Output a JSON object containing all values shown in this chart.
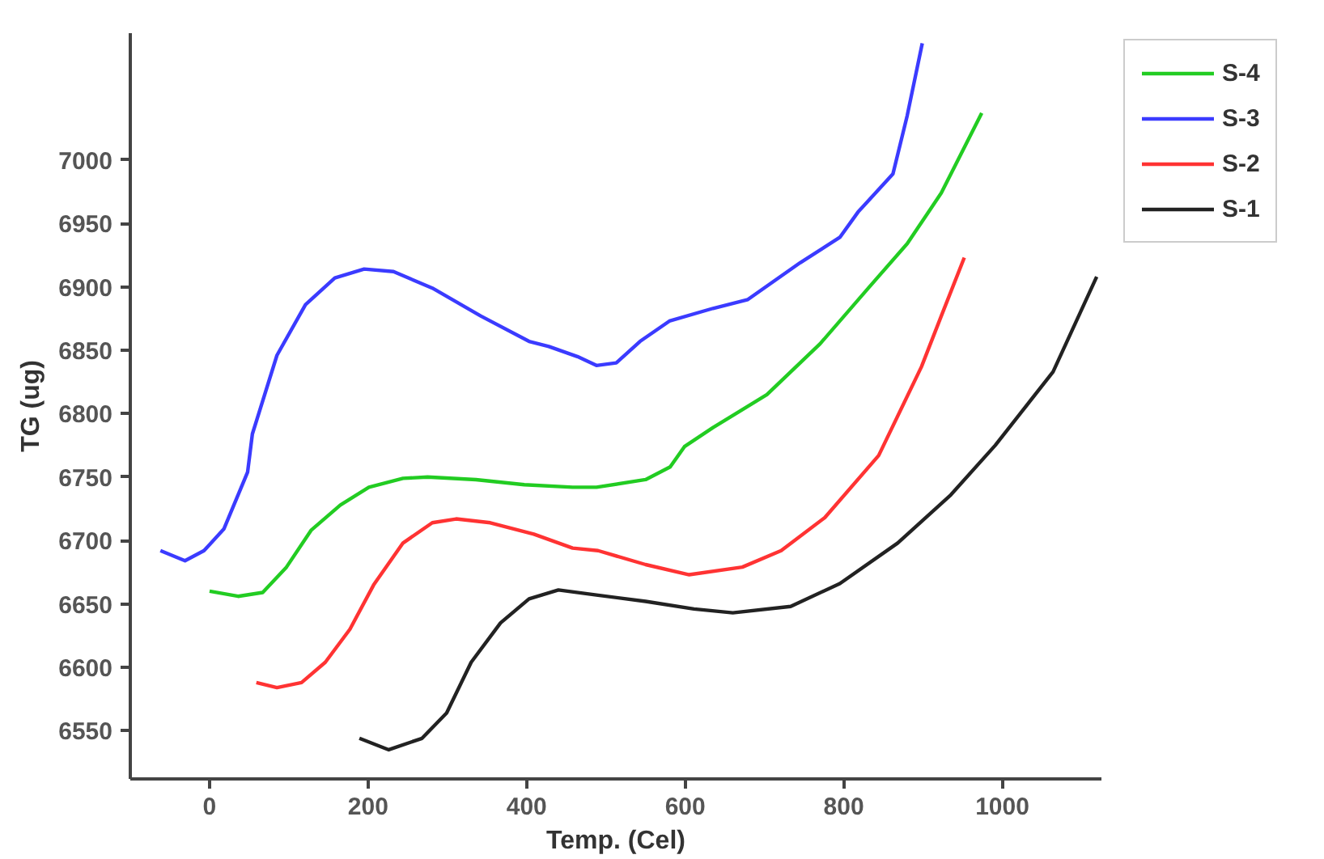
{
  "chart_data": {
    "type": "line",
    "xlabel": "Temp. (Cel)",
    "ylabel": "TG (ug)",
    "xlim": [
      -100,
      1125
    ],
    "ylim": [
      6512,
      7100
    ],
    "xticks": [
      0,
      200,
      400,
      600,
      800,
      1000
    ],
    "yticks": [
      6550,
      6600,
      6650,
      6700,
      6750,
      6800,
      6850,
      6900,
      6950,
      7000
    ],
    "grid": false,
    "legend": "top right",
    "marker": "none",
    "line_style": "solid",
    "series": [
      {
        "name": "S-4",
        "color": "#22cc22",
        "x": [
          0,
          36,
          67,
          97,
          128,
          165,
          201,
          244,
          275,
          336,
          397,
          458,
          488,
          550,
          581,
          599,
          635,
          703,
          770,
          831,
          880,
          923,
          974
        ],
        "values": [
          6660,
          6656,
          6659,
          6679,
          6708,
          6728,
          6742,
          6749,
          6750,
          6748,
          6744,
          6742,
          6742,
          6748,
          6758,
          6774,
          6789,
          6815,
          6855,
          6899,
          6934,
          6974,
          7037
        ]
      },
      {
        "name": "S-3",
        "color": "#3b3bff",
        "x": [
          -62,
          -31,
          -7,
          18,
          48,
          54,
          85,
          121,
          158,
          195,
          232,
          281,
          342,
          403,
          428,
          464,
          488,
          513,
          543,
          580,
          635,
          679,
          745,
          795,
          818,
          862,
          880,
          899
        ],
        "values": [
          6692,
          6684,
          6692,
          6709,
          6754,
          6784,
          6846,
          6886,
          6907,
          6914,
          6912,
          6899,
          6877,
          6857,
          6853,
          6845,
          6838,
          6840,
          6857,
          6873,
          6883,
          6890,
          6919,
          6939,
          6959,
          6989,
          7035,
          7092
        ]
      },
      {
        "name": "S-2",
        "color": "#ff3333",
        "x": [
          59,
          85,
          116,
          146,
          177,
          207,
          244,
          281,
          311,
          354,
          409,
          458,
          490,
          550,
          605,
          672,
          721,
          776,
          844,
          898,
          923,
          952
        ],
        "values": [
          6588,
          6584,
          6588,
          6604,
          6630,
          6665,
          6698,
          6714,
          6717,
          6714,
          6705,
          6694,
          6692,
          6681,
          6673,
          6679,
          6692,
          6718,
          6767,
          6837,
          6877,
          6923
        ]
      },
      {
        "name": "S-1",
        "color": "#222222",
        "x": [
          189,
          226,
          268,
          299,
          330,
          367,
          403,
          440,
          488,
          550,
          611,
          660,
          733,
          795,
          868,
          935,
          991,
          1064,
          1119
        ],
        "values": [
          6544,
          6535,
          6544,
          6564,
          6604,
          6635,
          6654,
          6661,
          6657,
          6652,
          6646,
          6643,
          6648,
          6666,
          6698,
          6736,
          6775,
          6833,
          6908
        ]
      }
    ]
  }
}
